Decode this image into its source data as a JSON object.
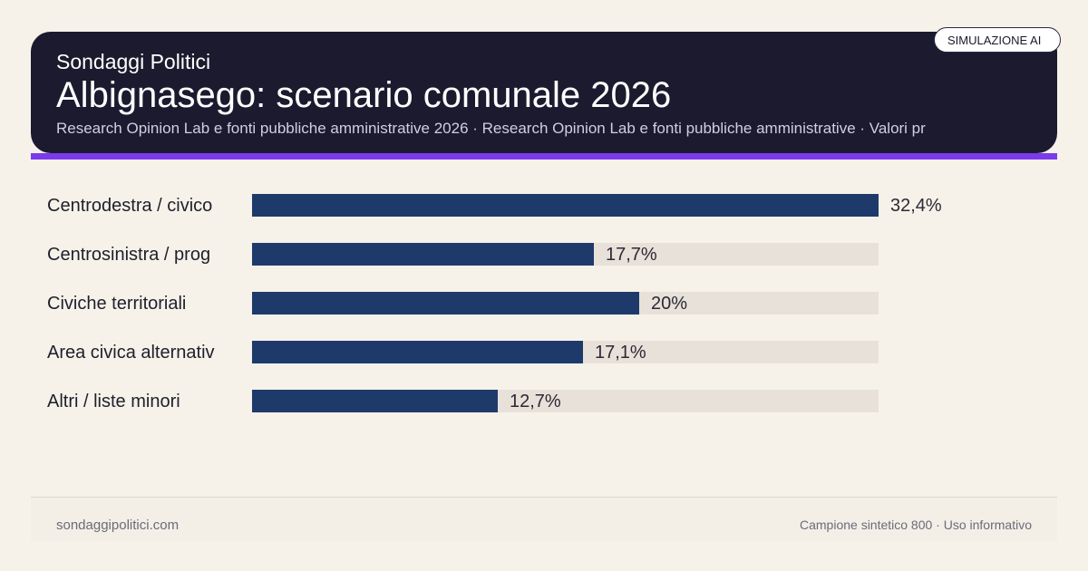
{
  "header": {
    "brand": "Sondaggi Politici",
    "title": "Albignasego: scenario comunale 2026",
    "subtitle": "Research Opinion Lab e fonti pubbliche amministrative 2026 · Research Opinion Lab e fonti pubbliche amministrative · Valori pr",
    "badge": "SIMULAZIONE AI"
  },
  "footer": {
    "site": "sondaggipolitici.com",
    "note": "Campione sintetico 800 · Uso informativo"
  },
  "colors": {
    "header_bg": "#1b1a2e",
    "accent": "#7c3aed",
    "bar": "#1e3a6b",
    "track": "#e8e1d9",
    "page_bg": "#f6f2ea"
  },
  "chart_data": {
    "type": "bar",
    "orientation": "horizontal",
    "categories": [
      "Centrodestra / civico",
      "Centrosinistra / prog",
      "Civiche territoriali",
      "Area civica alternativ",
      "Altri / liste minori"
    ],
    "values": [
      32.4,
      17.7,
      20,
      17.1,
      12.7
    ],
    "value_labels": [
      "32,4%",
      "17,7%",
      "20%",
      "17,1%",
      "12,7%"
    ],
    "unit": "%",
    "xlim": [
      0,
      32.4
    ],
    "grid": false
  }
}
